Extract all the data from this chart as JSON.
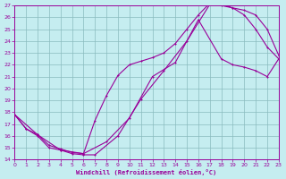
{
  "xlabel": "Windchill (Refroidissement éolien,°C)",
  "bg_color": "#c5edf0",
  "grid_color": "#8abbbe",
  "line_color": "#990099",
  "xlim": [
    0,
    23
  ],
  "ylim": [
    14,
    27
  ],
  "xticks": [
    0,
    1,
    2,
    3,
    4,
    5,
    6,
    7,
    8,
    9,
    10,
    11,
    12,
    13,
    14,
    15,
    16,
    17,
    18,
    19,
    20,
    21,
    22,
    23
  ],
  "yticks": [
    14,
    15,
    16,
    17,
    18,
    19,
    20,
    21,
    22,
    23,
    24,
    25,
    26,
    27
  ],
  "curve1_x": [
    0,
    1,
    2,
    3,
    4,
    5,
    6,
    7,
    9,
    11,
    13,
    15,
    17,
    18,
    19,
    20,
    21,
    22,
    23
  ],
  "curve1_y": [
    17.8,
    16.6,
    16.0,
    15.0,
    14.8,
    14.5,
    14.4,
    14.4,
    16.0,
    19.1,
    21.5,
    24.0,
    27.1,
    27.0,
    26.8,
    26.2,
    25.0,
    23.5,
    22.5
  ],
  "curve2_x": [
    0,
    1,
    2,
    3,
    4,
    5,
    6,
    7,
    8,
    9,
    10,
    11,
    12,
    13,
    14,
    15,
    16,
    17,
    18,
    19,
    20,
    21,
    22,
    23
  ],
  "curve2_y": [
    17.8,
    16.6,
    16.1,
    15.2,
    14.9,
    14.6,
    14.5,
    17.3,
    19.4,
    21.1,
    22.0,
    22.3,
    22.6,
    23.0,
    23.8,
    25.0,
    26.2,
    27.2,
    27.1,
    26.8,
    26.6,
    26.2,
    25.0,
    22.8
  ],
  "curve3_x": [
    0,
    2,
    4,
    6,
    8,
    10,
    12,
    14,
    16,
    18,
    19,
    20,
    21,
    22,
    23
  ],
  "curve3_y": [
    17.8,
    16.1,
    14.8,
    14.5,
    15.5,
    17.5,
    21.0,
    22.2,
    25.8,
    22.5,
    22.0,
    21.8,
    21.5,
    21.0,
    22.5
  ]
}
